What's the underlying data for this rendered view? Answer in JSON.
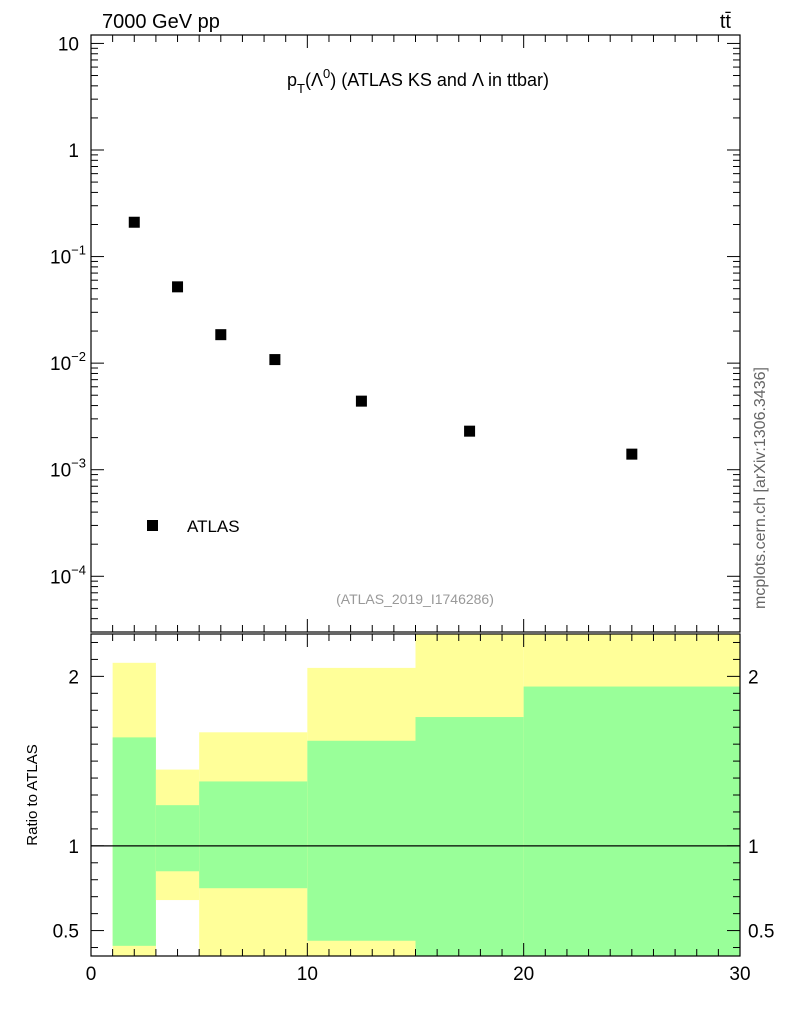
{
  "header": {
    "energy_label": "7000 GeV pp",
    "process_label": "tt̄",
    "source_label": "mcplots.cern.ch [arXiv:1306.3436]",
    "analysis_label": "(ATLAS_2019_I1746286)"
  },
  "chart_data": [
    {
      "type": "scatter",
      "title_parts": {
        "p": "p",
        "sub": "T",
        "open": "(Λ",
        "sup": "0",
        "rest": ") (ATLAS KS and Λ in ttbar)"
      },
      "yscale": "log",
      "xlim": [
        0,
        30
      ],
      "ylim": [
        3e-05,
        12
      ],
      "y_ticks": [
        {
          "value": 10,
          "base": "10",
          "exp": ""
        },
        {
          "value": 1,
          "base": "1",
          "exp": ""
        },
        {
          "value": 0.1,
          "base": "10",
          "exp": "−1"
        },
        {
          "value": 0.01,
          "base": "10",
          "exp": "−2"
        },
        {
          "value": 0.001,
          "base": "10",
          "exp": "−3"
        },
        {
          "value": 0.0001,
          "base": "10",
          "exp": "−4"
        }
      ],
      "legend": {
        "position": "bottom-left",
        "entries": [
          "ATLAS"
        ]
      },
      "series": [
        {
          "name": "ATLAS",
          "marker": "square",
          "color": "#000000",
          "x": [
            2,
            4,
            6,
            8.5,
            12.5,
            17.5,
            25
          ],
          "y": [
            0.21,
            0.052,
            0.0185,
            0.0108,
            0.0044,
            0.0023,
            0.0014
          ]
        }
      ]
    },
    {
      "type": "area",
      "ylabel": "Ratio to ATLAS",
      "xlim": [
        0,
        30
      ],
      "ylim": [
        0.35,
        2.25
      ],
      "x_ticks": [
        "0",
        "10",
        "20",
        "30"
      ],
      "y_ticks": [
        "0.5",
        "1",
        "2"
      ],
      "reference_line": 1,
      "bins": [
        {
          "xlo": 1,
          "xhi": 3,
          "stat_lo": 0.41,
          "stat_hi": 1.64,
          "tot_lo": 0.35,
          "tot_hi": 2.08
        },
        {
          "xlo": 3,
          "xhi": 5,
          "stat_lo": 0.85,
          "stat_hi": 1.24,
          "tot_lo": 0.68,
          "tot_hi": 1.45
        },
        {
          "xlo": 5,
          "xhi": 10,
          "stat_lo": 0.75,
          "stat_hi": 1.38,
          "tot_lo": 0.35,
          "tot_hi": 1.67
        },
        {
          "xlo": 10,
          "xhi": 15,
          "stat_lo": 0.44,
          "stat_hi": 1.62,
          "tot_lo": 0.35,
          "tot_hi": 2.05
        },
        {
          "xlo": 15,
          "xhi": 20,
          "stat_lo": 0.35,
          "stat_hi": 1.76,
          "tot_lo": 0.35,
          "tot_hi": 2.25
        },
        {
          "xlo": 20,
          "xhi": 30,
          "stat_lo": 0.35,
          "stat_hi": 1.94,
          "tot_lo": 0.35,
          "tot_hi": 2.25
        }
      ],
      "band_colors": {
        "stat": "#99ff99",
        "total": "#ffff99"
      }
    }
  ]
}
